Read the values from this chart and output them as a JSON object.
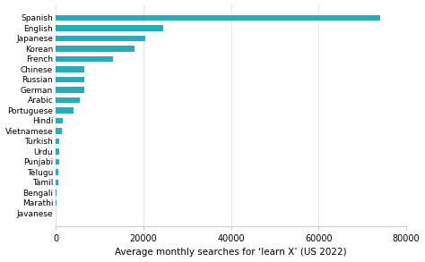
{
  "languages": [
    "Spanish",
    "English",
    "Japanese",
    "Korean",
    "French",
    "Chinese",
    "Russian",
    "German",
    "Arabic",
    "Portuguese",
    "Hindi",
    "Vietnamese",
    "Turkish",
    "Urdu",
    "Punjabi",
    "Telugu",
    "Tamil",
    "Bengali",
    "Marathi",
    "Javanese"
  ],
  "values": [
    74000,
    24500,
    20500,
    18000,
    13000,
    6500,
    6500,
    6500,
    5500,
    4200,
    1700,
    1500,
    900,
    900,
    800,
    700,
    650,
    300,
    200,
    50
  ],
  "bar_color": "#2AACB8",
  "xlabel": "Average monthly searches for ‘learn X’ (US 2022)",
  "background_color": "#ffffff",
  "xlim": [
    0,
    80000
  ],
  "xticks": [
    0,
    20000,
    40000,
    60000,
    80000
  ],
  "xlabel_fontsize": 7.5,
  "ytick_fontsize": 6.5,
  "xtick_fontsize": 7,
  "bar_height": 0.55,
  "grid_color": "#e0e0e0",
  "spine_color": "#cccccc"
}
